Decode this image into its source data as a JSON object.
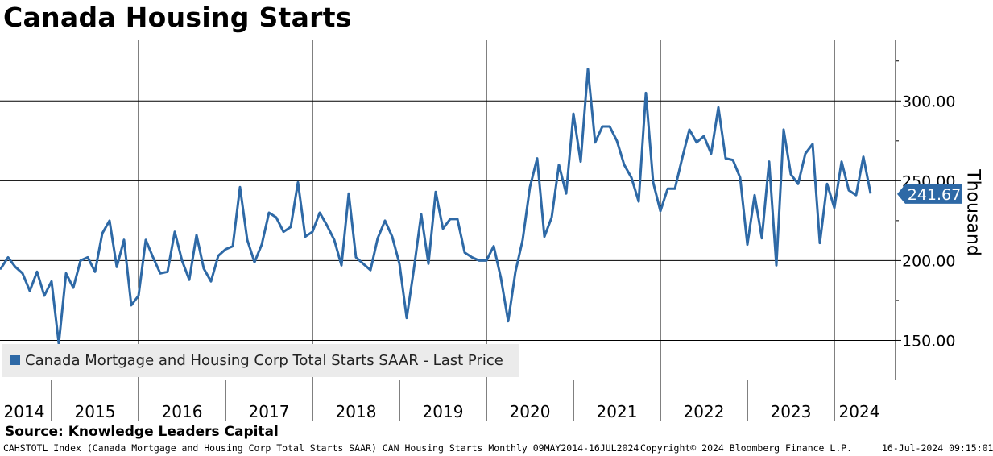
{
  "title": "Canada Housing Starts",
  "source": "Source: Knowledge Leaders Capital",
  "footer": {
    "left": "CAHSTOTL Index (Canada Mortgage and Housing Corp Total Starts SAAR) CAN Housing Starts  Monthly 09MAY2014-16JUL2024",
    "copyright": "Copyright© 2024 Bloomberg Finance L.P.",
    "date": "16-Jul-2024 09:15:01"
  },
  "legend": {
    "label": "Canada Mortgage and Housing Corp Total Starts SAAR - Last Price"
  },
  "colors": {
    "series": "#2e69a6",
    "grid": "#000000"
  },
  "chart_data": {
    "type": "line",
    "title": "Canada Housing Starts",
    "ylabel": "Thousand",
    "ylim": [
      125,
      338
    ],
    "yticks": [
      150,
      200,
      250,
      300
    ],
    "ytick_labels": [
      "150.00",
      "200.00",
      "250.00",
      "300.00"
    ],
    "last_price_label": "241.67",
    "years": [
      "2014",
      "2015",
      "2016",
      "2017",
      "2018",
      "2019",
      "2020",
      "2021",
      "2022",
      "2023",
      "2024"
    ],
    "start": {
      "year": 2014,
      "month": 5
    },
    "end": {
      "year": 2024,
      "month": 7
    },
    "series": [
      {
        "name": "Canada Mortgage and Housing Corp Total Starts SAAR - Last Price",
        "frequency": "monthly",
        "first_date": "2014-05",
        "values": [
          195,
          195,
          202,
          196,
          192,
          181,
          193,
          178,
          187,
          148,
          192,
          183,
          200,
          202,
          193,
          217,
          225,
          196,
          213,
          172,
          178,
          213,
          202,
          192,
          193,
          218,
          200,
          188,
          216,
          195,
          187,
          203,
          207,
          209,
          246,
          213,
          199,
          210,
          230,
          227,
          218,
          221,
          249,
          215,
          218,
          230,
          222,
          213,
          197,
          242,
          202,
          198,
          194,
          214,
          225,
          215,
          198,
          164,
          195,
          229,
          198,
          243,
          220,
          226,
          226,
          205,
          202,
          200,
          200,
          209,
          189,
          162,
          193,
          213,
          246,
          264,
          215,
          227,
          260,
          242,
          292,
          262,
          320,
          274,
          284,
          284,
          275,
          260,
          252,
          237,
          305,
          249,
          231,
          245,
          245,
          264,
          282,
          274,
          278,
          267,
          296,
          264,
          263,
          252,
          210,
          241,
          214,
          262,
          197,
          282,
          254,
          248,
          267,
          273,
          211,
          248,
          233,
          262,
          244,
          241,
          265,
          242
        ]
      }
    ]
  }
}
